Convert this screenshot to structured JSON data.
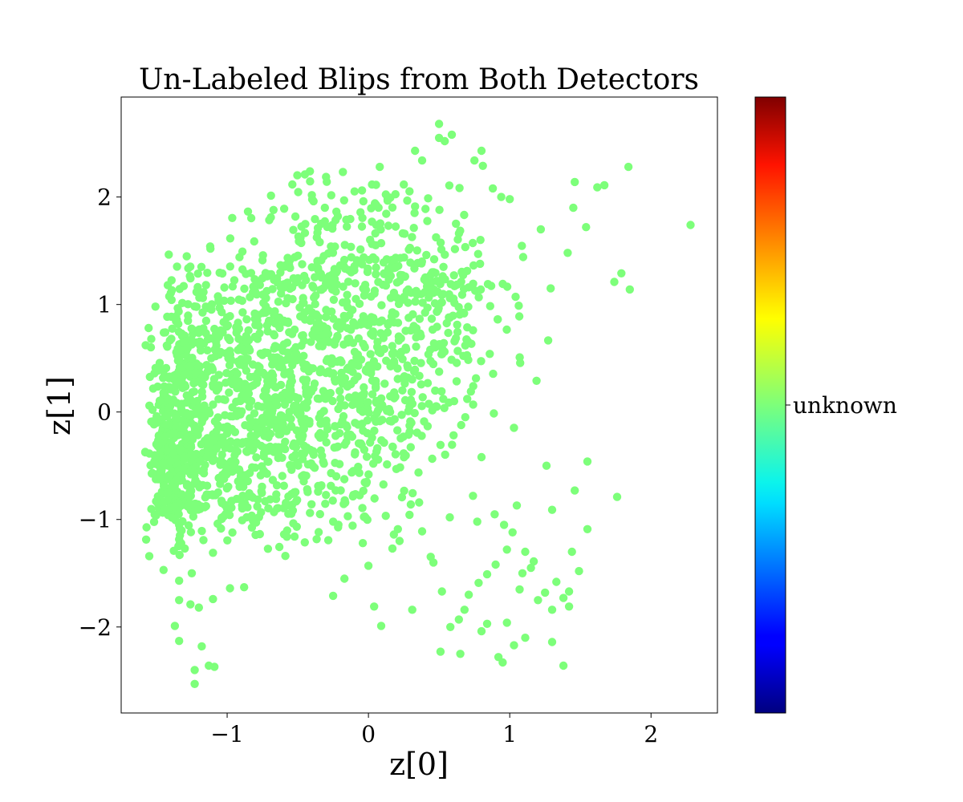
{
  "chart_data": {
    "type": "scatter",
    "title": "Un-Labeled Blips from Both Detectors",
    "xlabel": "z[0]",
    "ylabel": "z[1]",
    "xlim": [
      -1.75,
      2.47
    ],
    "ylim": [
      -2.8,
      2.93
    ],
    "xticks": [
      {
        "value": -1,
        "label": "−1"
      },
      {
        "value": 0,
        "label": "0"
      },
      {
        "value": 1,
        "label": "1"
      },
      {
        "value": 2,
        "label": "2"
      }
    ],
    "yticks": [
      {
        "value": -2,
        "label": "−2"
      },
      {
        "value": -1,
        "label": "−1"
      },
      {
        "value": 0,
        "label": "0"
      },
      {
        "value": 1,
        "label": "1"
      },
      {
        "value": 2,
        "label": "2"
      }
    ],
    "grid": false,
    "series": [
      {
        "category": "unknown",
        "color": "#7dff7a",
        "points": [
          [
            2.28,
            1.74
          ],
          [
            1.84,
            2.28
          ],
          [
            1.85,
            1.14
          ],
          [
            1.79,
            1.29
          ],
          [
            1.74,
            1.21
          ],
          [
            1.76,
            -0.79
          ],
          [
            1.55,
            -0.46
          ],
          [
            1.55,
            -1.09
          ],
          [
            1.54,
            1.72
          ],
          [
            1.46,
            2.14
          ],
          [
            1.45,
            1.9
          ],
          [
            1.41,
            1.48
          ],
          [
            1.46,
            -0.73
          ],
          [
            1.38,
            -2.36
          ],
          [
            1.26,
            -0.5
          ],
          [
            1.3,
            -0.91
          ],
          [
            1.3,
            -2.14
          ],
          [
            1.29,
            1.15
          ],
          [
            1.22,
            1.7
          ],
          [
            1.19,
            0.29
          ],
          [
            1.05,
            -0.87
          ],
          [
            1.07,
            -1.65
          ],
          [
            1.03,
            -2.17
          ],
          [
            0.92,
            -2.28
          ],
          [
            0.95,
            -2.33
          ],
          [
            0.8,
            -0.42
          ],
          [
            0.77,
            -1.02
          ],
          [
            0.74,
            -0.78
          ],
          [
            0.65,
            -2.25
          ],
          [
            0.64,
            -1.93
          ],
          [
            0.58,
            -2.0
          ],
          [
            0.51,
            -2.23
          ],
          [
            0.52,
            -1.67
          ],
          [
            0.46,
            -1.4
          ],
          [
            0.31,
            -1.84
          ],
          [
            0.09,
            -1.99
          ],
          [
            0.04,
            -1.81
          ],
          [
            -0.25,
            -1.71
          ],
          [
            -0.17,
            -1.55
          ],
          [
            0.0,
            -1.43
          ],
          [
            0.5,
            2.68
          ],
          [
            0.59,
            2.58
          ],
          [
            0.5,
            2.55
          ],
          [
            0.54,
            2.52
          ],
          [
            0.75,
            2.34
          ],
          [
            0.8,
            2.43
          ],
          [
            0.81,
            2.29
          ],
          [
            0.33,
            2.43
          ],
          [
            0.38,
            2.34
          ],
          [
            -0.45,
            2.21
          ],
          [
            0.08,
            2.28
          ],
          [
            1.67,
            2.11
          ],
          [
            1.62,
            2.09
          ],
          [
            1.0,
            1.98
          ],
          [
            0.88,
            2.08
          ],
          [
            0.94,
            2.0
          ],
          [
            -1.12,
            1.54
          ],
          [
            -1.42,
            1.18
          ],
          [
            -1.23,
            -2.53
          ],
          [
            -1.23,
            -2.4
          ],
          [
            -1.09,
            -2.37
          ],
          [
            -1.13,
            -2.36
          ],
          [
            -1.18,
            -2.18
          ],
          [
            -1.34,
            -2.13
          ],
          [
            -1.37,
            -1.99
          ],
          [
            -1.34,
            -1.75
          ],
          [
            -1.26,
            -1.79
          ],
          [
            -1.2,
            -1.82
          ],
          [
            -1.1,
            -1.74
          ],
          [
            -0.98,
            -1.64
          ],
          [
            -0.88,
            -1.63
          ],
          [
            -1.45,
            -1.47
          ],
          [
            -1.34,
            -1.57
          ],
          [
            -1.25,
            -1.5
          ],
          [
            -1.3,
            -1.27
          ],
          [
            -1.1,
            -1.31
          ],
          [
            0.3,
            -0.86
          ],
          [
            0.38,
            -1.11
          ],
          [
            0.22,
            -1.2
          ],
          [
            0.18,
            -1.14
          ],
          [
            0.17,
            -1.27
          ],
          [
            -0.04,
            -1.22
          ],
          [
            1.09,
            -1.5
          ],
          [
            1.15,
            -1.45
          ],
          [
            1.2,
            -1.75
          ],
          [
            1.33,
            -1.58
          ],
          [
            1.42,
            -1.67
          ],
          [
            1.38,
            -1.73
          ],
          [
            1.25,
            -1.68
          ],
          [
            1.17,
            -1.39
          ],
          [
            1.11,
            -1.3
          ],
          [
            1.02,
            -1.12
          ],
          [
            0.98,
            -1.28
          ],
          [
            0.96,
            -1.05
          ],
          [
            0.9,
            -1.42
          ],
          [
            0.84,
            -1.51
          ],
          [
            0.78,
            -1.59
          ],
          [
            0.68,
            -1.84
          ],
          [
            0.71,
            -1.7
          ],
          [
            1.3,
            -1.84
          ],
          [
            1.42,
            -1.81
          ],
          [
            1.44,
            -1.3
          ],
          [
            1.49,
            -1.48
          ],
          [
            0.98,
            -1.96
          ],
          [
            0.84,
            -1.97
          ],
          [
            0.8,
            -2.04
          ],
          [
            1.11,
            -2.1
          ]
        ],
        "clusters": [
          {
            "cx": -1.38,
            "cy": -0.5,
            "sx": 0.1,
            "sy": 0.32,
            "n": 300
          },
          {
            "cx": -1.3,
            "cy": 0.35,
            "sx": 0.14,
            "sy": 0.42,
            "n": 180
          },
          {
            "cx": -0.95,
            "cy": -0.35,
            "sx": 0.28,
            "sy": 0.42,
            "n": 280
          },
          {
            "cx": -0.85,
            "cy": 0.6,
            "sx": 0.32,
            "sy": 0.5,
            "n": 240
          },
          {
            "cx": -0.4,
            "cy": 0.0,
            "sx": 0.3,
            "sy": 0.45,
            "n": 220
          },
          {
            "cx": -0.4,
            "cy": 1.1,
            "sx": 0.35,
            "sy": 0.42,
            "n": 200
          },
          {
            "cx": 0.1,
            "cy": 0.9,
            "sx": 0.32,
            "sy": 0.55,
            "n": 170
          },
          {
            "cx": 0.55,
            "cy": 1.05,
            "sx": 0.22,
            "sy": 0.3,
            "n": 120
          },
          {
            "cx": 0.05,
            "cy": 0.2,
            "sx": 0.25,
            "sy": 0.35,
            "n": 90
          },
          {
            "cx": 0.55,
            "cy": 0.3,
            "sx": 0.3,
            "sy": 0.3,
            "n": 45
          },
          {
            "cx": -0.6,
            "cy": -0.85,
            "sx": 0.4,
            "sy": 0.25,
            "n": 80
          },
          {
            "cx": 0.1,
            "cy": -0.4,
            "sx": 0.3,
            "sy": 0.35,
            "n": 45
          },
          {
            "cx": 0.0,
            "cy": 1.8,
            "sx": 0.4,
            "sy": 0.28,
            "n": 70
          }
        ]
      }
    ],
    "colorbar": {
      "colormap": "jet",
      "tick_label": "unknown",
      "tick_fraction": 0.5
    }
  }
}
